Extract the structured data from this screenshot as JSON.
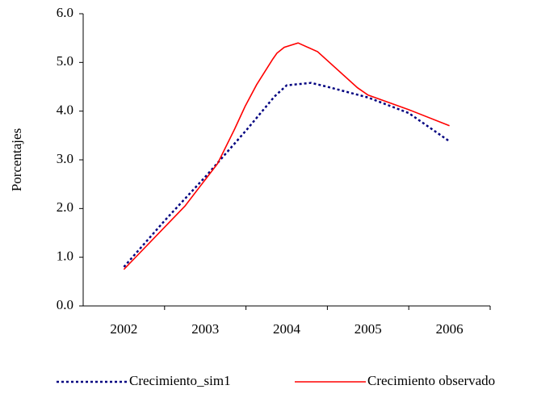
{
  "chart_data": {
    "type": "line",
    "ylabel": "Porcentajes",
    "xlim": [
      2001.5,
      2006.5
    ],
    "xticks": [
      2002,
      2003,
      2004,
      2005,
      2006
    ],
    "ylim": [
      0,
      6
    ],
    "yticks": [
      {
        "value": 0,
        "label": "0.0"
      },
      {
        "value": 1,
        "label": "1.0"
      },
      {
        "value": 2,
        "label": "2.0"
      },
      {
        "value": 3,
        "label": "3.0"
      },
      {
        "value": 4,
        "label": "4.0"
      },
      {
        "value": 5,
        "label": "5.0"
      },
      {
        "value": 6,
        "label": "6.0"
      }
    ],
    "legend": "bottom",
    "series": [
      {
        "name": "Crecimiento_sim1",
        "color": "#000080",
        "dashed": true,
        "x": [
          2002,
          2002.5,
          2003,
          2003.5,
          2003.85,
          2004,
          2004.3,
          2004.5,
          2005,
          2005.5,
          2006
        ],
        "values": [
          0.8,
          1.75,
          2.65,
          3.6,
          4.3,
          4.53,
          4.58,
          4.5,
          4.28,
          3.96,
          3.38
        ]
      },
      {
        "name": "Crecimiento observado",
        "color": "#ff0000",
        "dashed": false,
        "x": [
          2002,
          2002.75,
          2003.15,
          2003.36,
          2003.49,
          2003.63,
          2003.83,
          2003.88,
          2003.97,
          2004.14,
          2004.38,
          2004.87,
          2005,
          2005.5,
          2006
        ],
        "values": [
          0.75,
          2.05,
          2.92,
          3.63,
          4.1,
          4.54,
          5.07,
          5.19,
          5.31,
          5.4,
          5.22,
          4.48,
          4.33,
          4.03,
          3.7
        ]
      }
    ]
  }
}
